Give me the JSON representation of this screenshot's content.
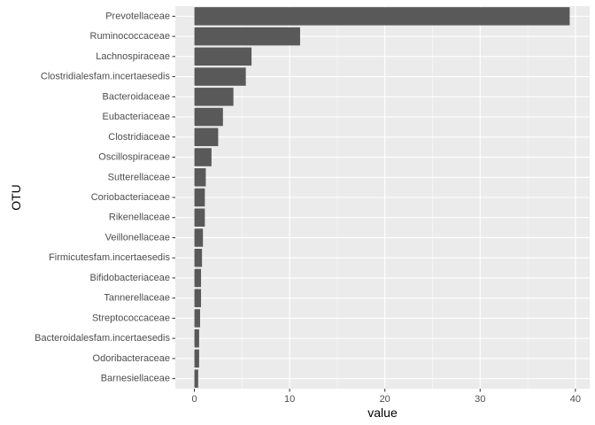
{
  "chart_data": {
    "type": "bar",
    "orientation": "horizontal",
    "xlabel": "value",
    "ylabel": "OTU",
    "xlim": [
      -2.0,
      41.5
    ],
    "xticks": [
      0,
      10,
      20,
      30,
      40
    ],
    "grid": true,
    "legend": "none",
    "categories": [
      "Prevotellaceae",
      "Ruminococcaceae",
      "Lachnospiraceae",
      "Clostridialesfam.incertaesedis",
      "Bacteroidaceae",
      "Eubacteriaceae",
      "Clostridiaceae",
      "Oscillospiraceae",
      "Sutterellaceae",
      "Coriobacteriaceae",
      "Rikenellaceae",
      "Veillonellaceae",
      "Firmicutesfam.incertaesedis",
      "Bifidobacteriaceae",
      "Tannerellaceae",
      "Streptococcaceae",
      "Bacteroidalesfam.incertaesedis",
      "Odoribacteraceae",
      "Barnesiellaceae"
    ],
    "values": [
      39.4,
      11.1,
      6.0,
      5.4,
      4.1,
      3.0,
      2.5,
      1.8,
      1.2,
      1.1,
      1.1,
      0.9,
      0.8,
      0.7,
      0.7,
      0.6,
      0.5,
      0.5,
      0.4
    ],
    "colors": {
      "panel": "#ebebeb",
      "grid_major": "#ffffff",
      "bar": "#595959"
    }
  }
}
